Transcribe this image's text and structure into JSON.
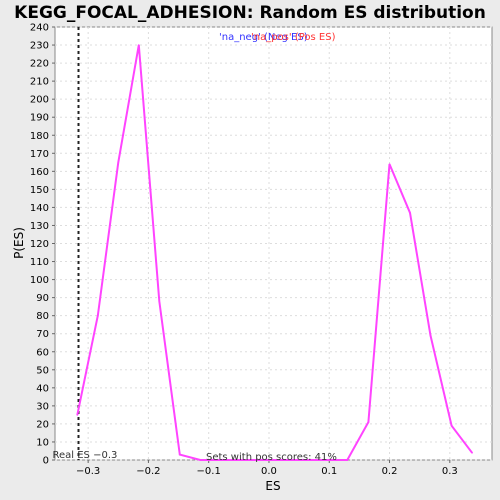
{
  "chart_data": {
    "type": "line",
    "title": "KEGG_FOCAL_ADHESION: Random ES distribution",
    "xlabel": "ES",
    "ylabel": "P(ES)",
    "xlim": [
      -0.355,
      0.37
    ],
    "ylim": [
      0,
      240
    ],
    "x_ticks": [
      -0.3,
      -0.2,
      -0.1,
      0.0,
      0.1,
      0.2,
      0.3
    ],
    "x_tick_labels": [
      "−0.3",
      "−0.2",
      "−0.1",
      "0.0",
      "0.1",
      "0.2",
      "0.3"
    ],
    "y_ticks": [
      0,
      10,
      20,
      30,
      40,
      50,
      60,
      70,
      80,
      90,
      100,
      110,
      120,
      130,
      140,
      150,
      160,
      170,
      180,
      190,
      200,
      210,
      220,
      230,
      240
    ],
    "grid": true,
    "legend": {
      "position": "top-center",
      "entries": [
        {
          "label": "'na_neg' (Neg ES)",
          "color": "#3333ff"
        },
        {
          "label": "'na_pos' (Pos ES)",
          "color": "#ff3333"
        }
      ]
    },
    "series": [
      {
        "color": "#ff44ff",
        "x": [
          -0.318,
          -0.284,
          -0.25,
          -0.216,
          -0.182,
          -0.148,
          -0.114,
          -0.08,
          -0.046,
          -0.012,
          0.022,
          0.056,
          0.09,
          0.13,
          0.165,
          0.2,
          0.234,
          0.268,
          0.303,
          0.337
        ],
        "y": [
          25,
          80,
          165,
          230,
          88,
          3,
          0,
          0,
          0,
          0,
          0,
          0,
          0,
          0,
          21,
          164,
          137,
          69,
          19,
          4
        ]
      }
    ],
    "reference_line": {
      "x": -0.316,
      "label": "Real ES −0.3"
    },
    "annotation": "Sets with pos scores: 41%"
  }
}
